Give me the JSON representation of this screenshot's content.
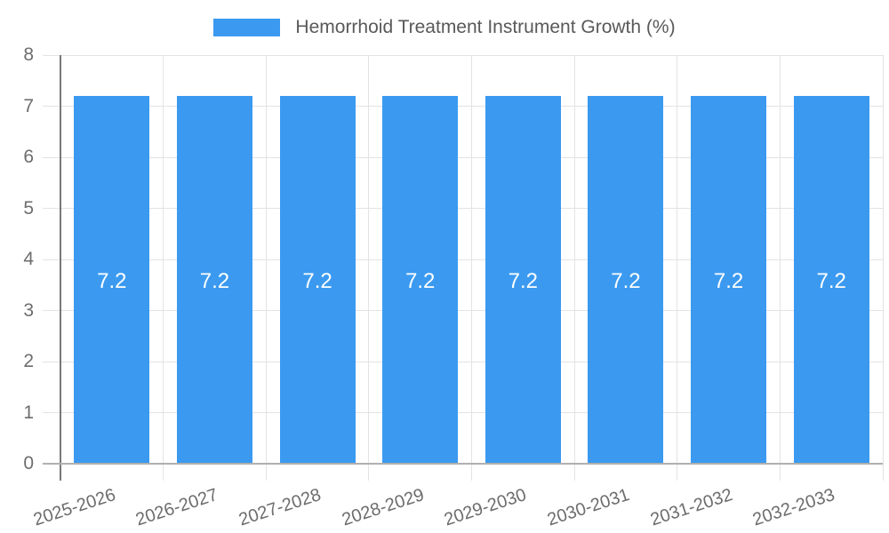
{
  "chart_data": {
    "type": "bar",
    "title": "Hemorrhoid Treatment Instrument Growth (%)",
    "categories": [
      "2025-2026",
      "2026-2027",
      "2027-2028",
      "2028-2029",
      "2029-2030",
      "2030-2031",
      "2031-2032",
      "2032-2033"
    ],
    "values": [
      7.2,
      7.2,
      7.2,
      7.2,
      7.2,
      7.2,
      7.2,
      7.2
    ],
    "bar_value_labels": [
      "7.2",
      "7.2",
      "7.2",
      "7.2",
      "7.2",
      "7.2",
      "7.2",
      "7.2"
    ],
    "xlabel": "",
    "ylabel": "",
    "ylim": [
      0,
      8
    ],
    "yticks": [
      "0",
      "1",
      "2",
      "3",
      "4",
      "5",
      "6",
      "7",
      "8"
    ],
    "grid": true,
    "legend_position": "top-center",
    "value_labels_inside_bars": true,
    "colors": {
      "bar": "#3b9af0",
      "bar_label": "#ffffff",
      "axis_label": "#6d6d6d",
      "legend_text": "#595959",
      "gridline": "#e3e3e3",
      "y_axis_line": "#787878",
      "x_baseline": "#b0b0b0"
    }
  }
}
